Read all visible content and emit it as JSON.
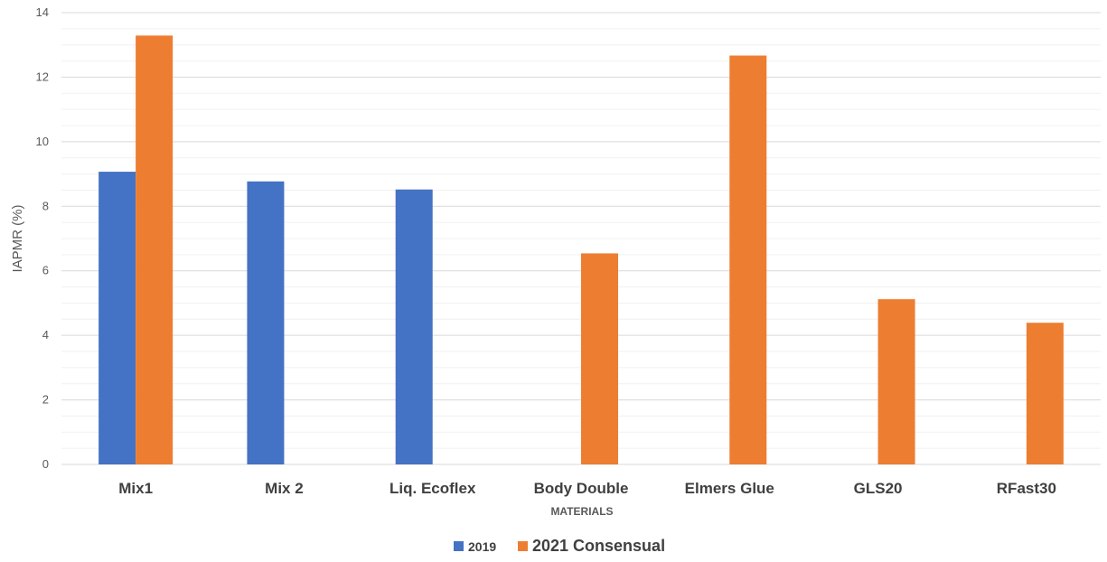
{
  "chart_data": {
    "type": "bar",
    "title": "",
    "xlabel": "MATERIALS",
    "ylabel": "IAPMR (%)",
    "ylim": [
      0,
      14
    ],
    "yticks": [
      0,
      2,
      4,
      6,
      8,
      10,
      12,
      14
    ],
    "grid": true,
    "legend_position": "bottom",
    "categories": [
      "Mix1",
      "Mix 2",
      "Liq. Ecoflex",
      "Body Double",
      "Elmers Glue",
      "GLS20",
      "RFast30"
    ],
    "series": [
      {
        "name": "2019",
        "color": "#4472C4",
        "values": [
          9.07,
          8.77,
          8.52,
          null,
          null,
          null,
          null
        ]
      },
      {
        "name": "2021 Consensual",
        "color": "#ED7D31",
        "values": [
          13.29,
          null,
          null,
          6.54,
          12.67,
          5.12,
          4.39
        ]
      }
    ]
  }
}
